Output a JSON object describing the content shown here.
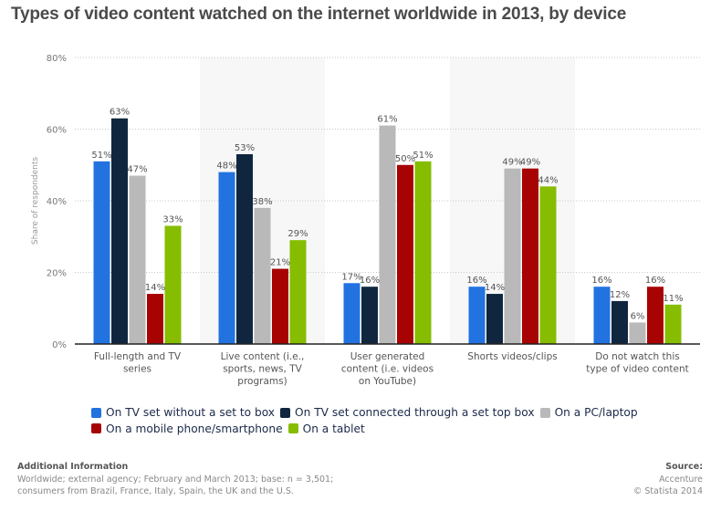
{
  "chart_data": {
    "type": "bar",
    "title": "Types of video content watched on the internet worldwide in 2013, by device",
    "xlabel": "",
    "ylabel": "Share of respondents",
    "ylim": [
      0,
      80
    ],
    "yticks": [
      0,
      20,
      40,
      60,
      80
    ],
    "ytick_labels": [
      "0%",
      "20%",
      "40%",
      "60%",
      "80%"
    ],
    "grid": true,
    "legend_position": "bottom",
    "categories": [
      [
        "Full-length and TV",
        "series"
      ],
      [
        "Live content (i.e.,",
        "sports, news, TV",
        "programs)"
      ],
      [
        "User generated",
        "content (i.e. videos",
        "on YouTube)"
      ],
      [
        "Shorts videos/clips"
      ],
      [
        "Do not watch this",
        "type of video content"
      ]
    ],
    "series": [
      {
        "name": "On TV set without a set to box",
        "color": "#2272e0",
        "values": [
          51,
          48,
          17,
          16,
          16
        ]
      },
      {
        "name": "On TV set connected through a set top box",
        "color": "#10263f",
        "values": [
          63,
          53,
          16,
          14,
          12
        ]
      },
      {
        "name": "On a PC/laptop",
        "color": "#b9b9b9",
        "values": [
          47,
          38,
          61,
          49,
          6
        ]
      },
      {
        "name": "On a mobile phone/smartphone",
        "color": "#a80303",
        "values": [
          14,
          21,
          50,
          49,
          16
        ]
      },
      {
        "name": "On a tablet",
        "color": "#86bd00",
        "values": [
          33,
          29,
          51,
          44,
          11
        ]
      }
    ],
    "value_suffix": "%"
  },
  "footer": {
    "additional_info_heading": "Additional Information",
    "additional_info_line1": "Worldwide; external agency; February and March 2013; base: n = 3,501;",
    "additional_info_line2": "consumers from Brazil, France, Italy, Spain, the UK and the U.S.",
    "source_heading": "Source:",
    "source_name": "Accenture",
    "copyright": "© Statista 2014"
  }
}
